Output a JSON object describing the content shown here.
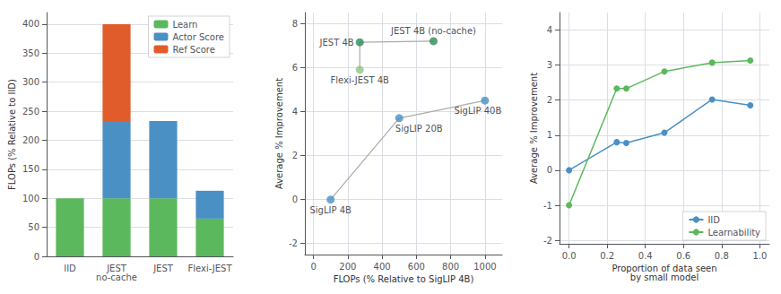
{
  "chart_data": [
    {
      "type": "bar",
      "stacked": true,
      "categories": [
        "IID",
        "JEST\nno-cache",
        "JEST",
        "Flexi-JEST"
      ],
      "series": [
        {
          "name": "Learn",
          "color": "#5cb85c",
          "values": [
            100,
            100,
            100,
            65
          ]
        },
        {
          "name": "Actor Score",
          "color": "#4a90c4",
          "values": [
            0,
            133,
            133,
            48
          ]
        },
        {
          "name": "Ref Score",
          "color": "#e05c2a",
          "values": [
            0,
            167,
            0,
            0
          ]
        }
      ],
      "ylabel": "FLOPs (% Relative to IID)",
      "ylim": [
        0,
        420
      ],
      "yticks": [
        0,
        50,
        100,
        150,
        200,
        250,
        300,
        350,
        400
      ],
      "grid": true,
      "legend": "upper right"
    },
    {
      "type": "scatter",
      "marker": "circle",
      "series": [
        {
          "type": "line",
          "color": "#aaaaaa",
          "x": [
            100,
            500,
            1000
          ],
          "values": [
            0.0,
            3.7,
            4.5
          ]
        },
        {
          "type": "line",
          "color": "#aaaaaa",
          "x": [
            270,
            270,
            700
          ],
          "values": [
            5.9,
            7.15,
            7.2
          ]
        },
        {
          "type": "scatter",
          "color": "#4a90c4",
          "x": [
            100,
            500,
            1000
          ],
          "values": [
            0.0,
            3.7,
            4.5
          ]
        },
        {
          "type": "scatter",
          "colors": [
            "#90c488",
            "#2d8b57",
            "#2d8b57"
          ],
          "x": [
            270,
            270,
            700
          ],
          "values": [
            5.9,
            7.15,
            7.2
          ]
        }
      ],
      "annotations": [
        {
          "text": "SigLIP 4B",
          "x": 100,
          "y": 0.0
        },
        {
          "text": "SigLIP 20B",
          "x": 500,
          "y": 3.7
        },
        {
          "text": "SigLIP 40B",
          "x": 1000,
          "y": 4.5
        },
        {
          "text": "Flexi-JEST 4B",
          "x": 270,
          "y": 5.9
        },
        {
          "text": "JEST 4B",
          "x": 270,
          "y": 7.15
        },
        {
          "text": "JEST 4B (no-cache)",
          "x": 700,
          "y": 7.2
        }
      ],
      "xlabel": "FLOPs (% Relative to SigLIP 4B)",
      "ylabel": "Average % Improvement",
      "xlim": [
        -50,
        1100
      ],
      "ylim": [
        -2.5,
        8.5
      ],
      "xticks": [
        0,
        200,
        400,
        600,
        800,
        1000
      ],
      "yticks": [
        -2,
        0,
        2,
        4,
        6,
        8
      ],
      "grid": true
    },
    {
      "type": "line",
      "marker": "circle",
      "x": [
        0.0,
        0.25,
        0.3,
        0.5,
        0.75,
        0.95
      ],
      "series": [
        {
          "name": "IID",
          "color": "#4a90c4",
          "values": [
            0.0,
            0.8,
            0.78,
            1.07,
            2.02,
            1.85
          ]
        },
        {
          "name": "Learnability",
          "color": "#5cb85c",
          "values": [
            -1.0,
            2.33,
            2.33,
            2.82,
            3.07,
            3.13
          ]
        }
      ],
      "xlabel": "Proportion of data seen\nby small model",
      "ylabel": "Average % Improvement",
      "xlim": [
        -0.05,
        1.05
      ],
      "ylim": [
        -2.1,
        4.5
      ],
      "xticks": [
        {
          "value": 0.0,
          "label": "0.0"
        },
        0.2,
        0.4,
        0.6,
        0.8,
        {
          "value": 1.0,
          "label": "1.0"
        }
      ],
      "yticks": [
        -2,
        -1,
        0,
        1,
        2,
        3,
        4
      ],
      "grid": true,
      "legend": "lower right"
    }
  ]
}
